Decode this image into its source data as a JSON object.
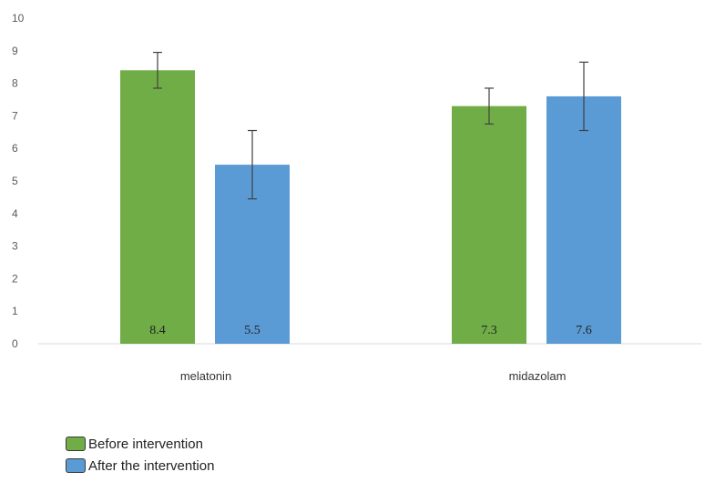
{
  "chart_data": {
    "type": "bar",
    "categories": [
      "melatonin",
      "midazolam"
    ],
    "series": [
      {
        "name": "Before intervention",
        "color": "#70ad47",
        "values": [
          8.4,
          7.3
        ],
        "error_low": [
          7.85,
          6.75
        ],
        "error_high": [
          8.95,
          7.85
        ],
        "labels": [
          "8.4",
          "7.3"
        ]
      },
      {
        "name": "After the intervention",
        "color": "#5b9bd5",
        "values": [
          5.5,
          7.6
        ],
        "error_low": [
          4.45,
          6.55
        ],
        "error_high": [
          6.55,
          8.65
        ],
        "labels": [
          "5.5",
          "7.6"
        ]
      }
    ],
    "ylim": [
      0,
      10
    ],
    "yticks": [
      "0",
      "1",
      "2",
      "3",
      "4",
      "5",
      "6",
      "7",
      "8",
      "9",
      "10"
    ],
    "grid": false,
    "legend_position": "bottom-left",
    "title": "",
    "xlabel": "",
    "ylabel": ""
  }
}
